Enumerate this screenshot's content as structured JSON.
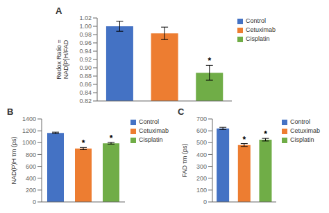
{
  "chart_data": [
    {
      "type": "bar",
      "title": "A",
      "categories": [
        "Control",
        "Cetuximab",
        "Cisplatin"
      ],
      "values": [
        1.0,
        0.983,
        0.888
      ],
      "errors": [
        0.012,
        0.015,
        0.018
      ],
      "colors": [
        "#4472C4",
        "#ED7D31",
        "#70AD47"
      ],
      "ylabel": "Redox Ratio =\nNAD[P]H/FAD",
      "ylim": [
        0.82,
        1.02
      ],
      "yticks": [
        0.82,
        0.84,
        0.86,
        0.88,
        {
          "value": 0.9,
          "label": "0.90"
        },
        0.92,
        0.94,
        0.96,
        0.98,
        {
          "value": 1.0,
          "label": "1.00"
        },
        1.02
      ],
      "annotations": [
        {
          "category": "Cisplatin",
          "text": "*"
        }
      ],
      "tick_labels": "y",
      "legend": "right"
    },
    {
      "type": "bar",
      "title": "B",
      "categories": [
        "Control",
        "Cetuximab",
        "Cisplatin"
      ],
      "values": [
        1165,
        900,
        990
      ],
      "errors": [
        12,
        18,
        14
      ],
      "colors": [
        "#4472C4",
        "#ED7D31",
        "#70AD47"
      ],
      "ylabel": "NAD(P)H τm (ps)",
      "ylim": [
        0,
        1400
      ],
      "yticks": [
        0,
        200,
        400,
        600,
        800,
        1000,
        1200,
        1400
      ],
      "annotations": [
        {
          "category": "Cetuximab",
          "text": "*"
        },
        {
          "category": "Cisplatin",
          "text": "*"
        }
      ],
      "tick_labels": "y",
      "legend": "right"
    },
    {
      "type": "bar",
      "title": "C",
      "categories": [
        "Control",
        "Cetuximab",
        "Cisplatin"
      ],
      "values": [
        620,
        480,
        525
      ],
      "errors": [
        9,
        12,
        11
      ],
      "colors": [
        "#4472C4",
        "#ED7D31",
        "#70AD47"
      ],
      "ylabel": "FAD τm (ps)",
      "ylim": [
        0,
        700
      ],
      "yticks": [
        0,
        100,
        200,
        300,
        400,
        500,
        600,
        700
      ],
      "annotations": [
        {
          "category": "Cetuximab",
          "text": "*"
        },
        {
          "category": "Cisplatin",
          "text": "*"
        }
      ],
      "tick_labels": "y",
      "legend": "right"
    }
  ]
}
